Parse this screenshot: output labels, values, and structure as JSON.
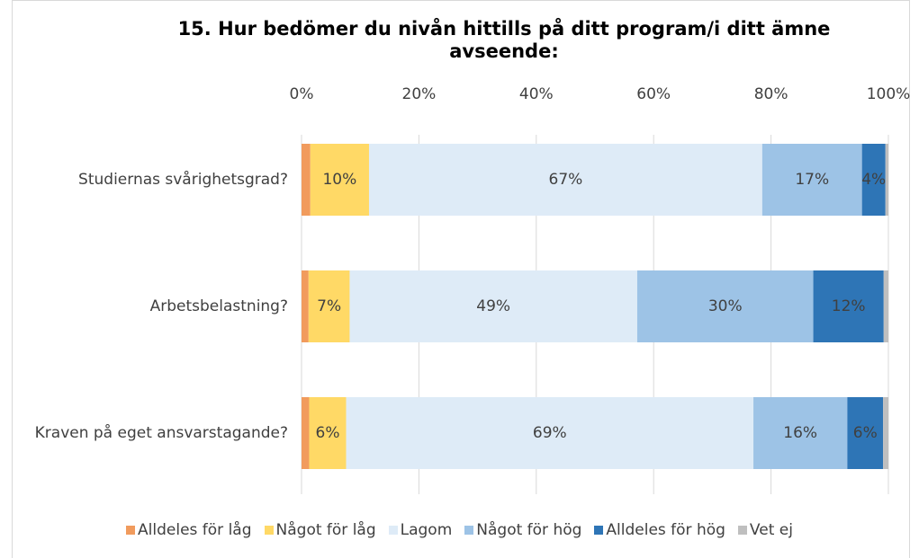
{
  "chart_data": {
    "type": "stacked-barh",
    "title": "15. Hur bedömer du nivån hittills på ditt program/i ditt ämne avseende:",
    "categories": [
      "Studiernas svårighetsgrad?",
      "Arbetsbelastning?",
      "Kraven på eget ansvarstagande?"
    ],
    "series": [
      {
        "name": "Alldeles för låg",
        "color": "#f19b5d",
        "values": [
          1.5,
          1.2,
          1.3
        ],
        "value_labels": [
          null,
          null,
          null
        ]
      },
      {
        "name": "Något för låg",
        "color": "#ffd966",
        "values": [
          10,
          7,
          6.3
        ],
        "value_labels": [
          "10%",
          "7%",
          "6%"
        ]
      },
      {
        "name": "Lagom",
        "color": "#deebf7",
        "values": [
          67,
          49,
          69.4
        ],
        "value_labels": [
          "67%",
          "49%",
          "69%"
        ]
      },
      {
        "name": "Något för hög",
        "color": "#9dc3e6",
        "values": [
          17,
          30,
          16
        ],
        "value_labels": [
          "17%",
          "30%",
          "16%"
        ]
      },
      {
        "name": "Alldeles för hög",
        "color": "#2e75b6",
        "values": [
          4,
          12,
          6.1
        ],
        "value_labels": [
          "4%",
          "12%",
          "6%"
        ]
      },
      {
        "name": "Vet ej",
        "color": "#bfbfbf",
        "values": [
          0.5,
          0.8,
          0.9
        ],
        "value_labels": [
          null,
          null,
          null
        ]
      }
    ],
    "xlim": [
      0,
      100
    ],
    "xticks": [
      {
        "value": 0,
        "label": "0%"
      },
      {
        "value": 20,
        "label": "20%"
      },
      {
        "value": 40,
        "label": "40%"
      },
      {
        "value": 60,
        "label": "60%"
      },
      {
        "value": 80,
        "label": "80%"
      },
      {
        "value": 100,
        "label": "100%"
      }
    ],
    "grid": true,
    "legend": "bottom"
  }
}
